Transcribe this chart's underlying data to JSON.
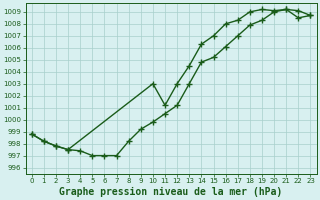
{
  "series1_x": [
    0,
    1,
    2,
    3,
    4,
    5,
    6,
    7,
    8,
    9,
    10,
    11,
    12,
    13,
    14,
    15,
    16,
    17,
    18,
    19,
    20,
    21,
    22,
    23
  ],
  "series1_y": [
    998.8,
    998.2,
    997.8,
    997.5,
    997.4,
    997.0,
    997.0,
    997.0,
    998.2,
    999.2,
    999.8,
    1000.5,
    1001.2,
    1003.0,
    1004.8,
    1005.2,
    1006.1,
    1007.0,
    1007.9,
    1008.3,
    1009.0,
    1009.2,
    1009.1,
    1008.7
  ],
  "series2_x": [
    0,
    1,
    2,
    3,
    10,
    11,
    12,
    13,
    14,
    15,
    16,
    17,
    18,
    19,
    20,
    21,
    22,
    23
  ],
  "series2_y": [
    998.8,
    998.2,
    997.8,
    997.5,
    1003.0,
    1001.2,
    1003.0,
    1004.5,
    1006.3,
    1007.0,
    1008.0,
    1008.3,
    1009.0,
    1009.2,
    1009.1,
    1009.2,
    1008.5,
    1008.7
  ],
  "xlabel": "Graphe pression niveau de la mer (hPa)",
  "yticks": [
    996,
    997,
    998,
    999,
    1000,
    1001,
    1002,
    1003,
    1004,
    1005,
    1006,
    1007,
    1008,
    1009
  ],
  "xticks": [
    0,
    1,
    2,
    3,
    4,
    5,
    6,
    7,
    8,
    9,
    10,
    11,
    12,
    13,
    14,
    15,
    16,
    17,
    18,
    19,
    20,
    21,
    22,
    23
  ],
  "ylim": [
    995.5,
    1009.7
  ],
  "xlim": [
    -0.5,
    23.5
  ],
  "line_color": "#1a5c1a",
  "bg_color": "#d8f0f0",
  "grid_color": "#a8d0cc",
  "marker": "+",
  "markersize": 4,
  "linewidth": 1.0,
  "xlabel_fontsize": 7,
  "tick_fontsize": 5.0,
  "xlabel_fontweight": "bold"
}
